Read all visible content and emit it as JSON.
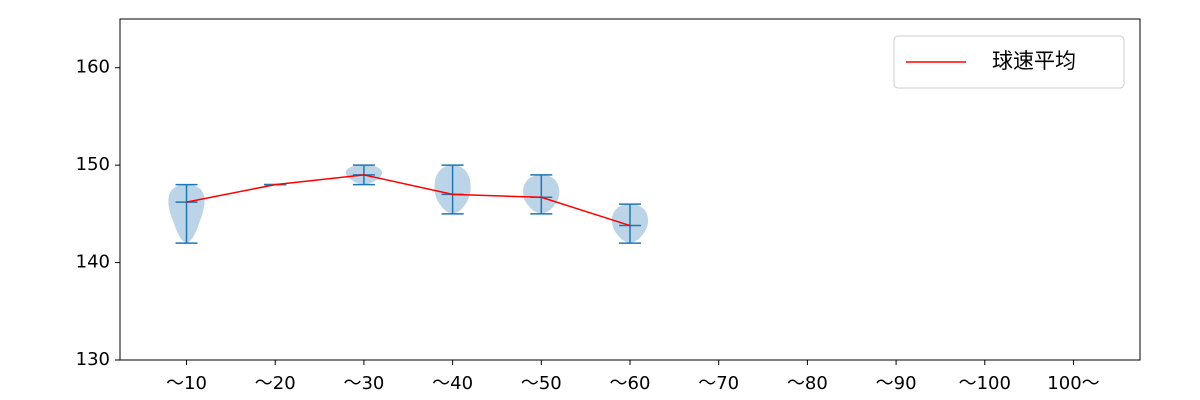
{
  "chart_data": {
    "type": "violin",
    "categories": [
      "～10",
      "～20",
      "～30",
      "～40",
      "～50",
      "～60",
      "～70",
      "～80",
      "～90",
      "～100",
      "100～"
    ],
    "series": [
      {
        "name": "球速平均",
        "color": "#ff0000",
        "values": [
          146.2,
          148,
          149,
          147,
          146.7,
          143.8,
          null,
          null,
          null,
          null,
          null
        ]
      }
    ],
    "violins": {
      "color": "#1f77b4",
      "fill": "#bcd4e8",
      "min": [
        142,
        148,
        148,
        145,
        145,
        142,
        null,
        null,
        null,
        null,
        null
      ],
      "max": [
        148,
        148,
        150,
        150,
        149,
        146,
        null,
        null,
        null,
        null,
        null
      ]
    },
    "ylim": [
      130,
      165
    ],
    "yticks": [
      130,
      140,
      150,
      160
    ],
    "legend": "upper right"
  }
}
